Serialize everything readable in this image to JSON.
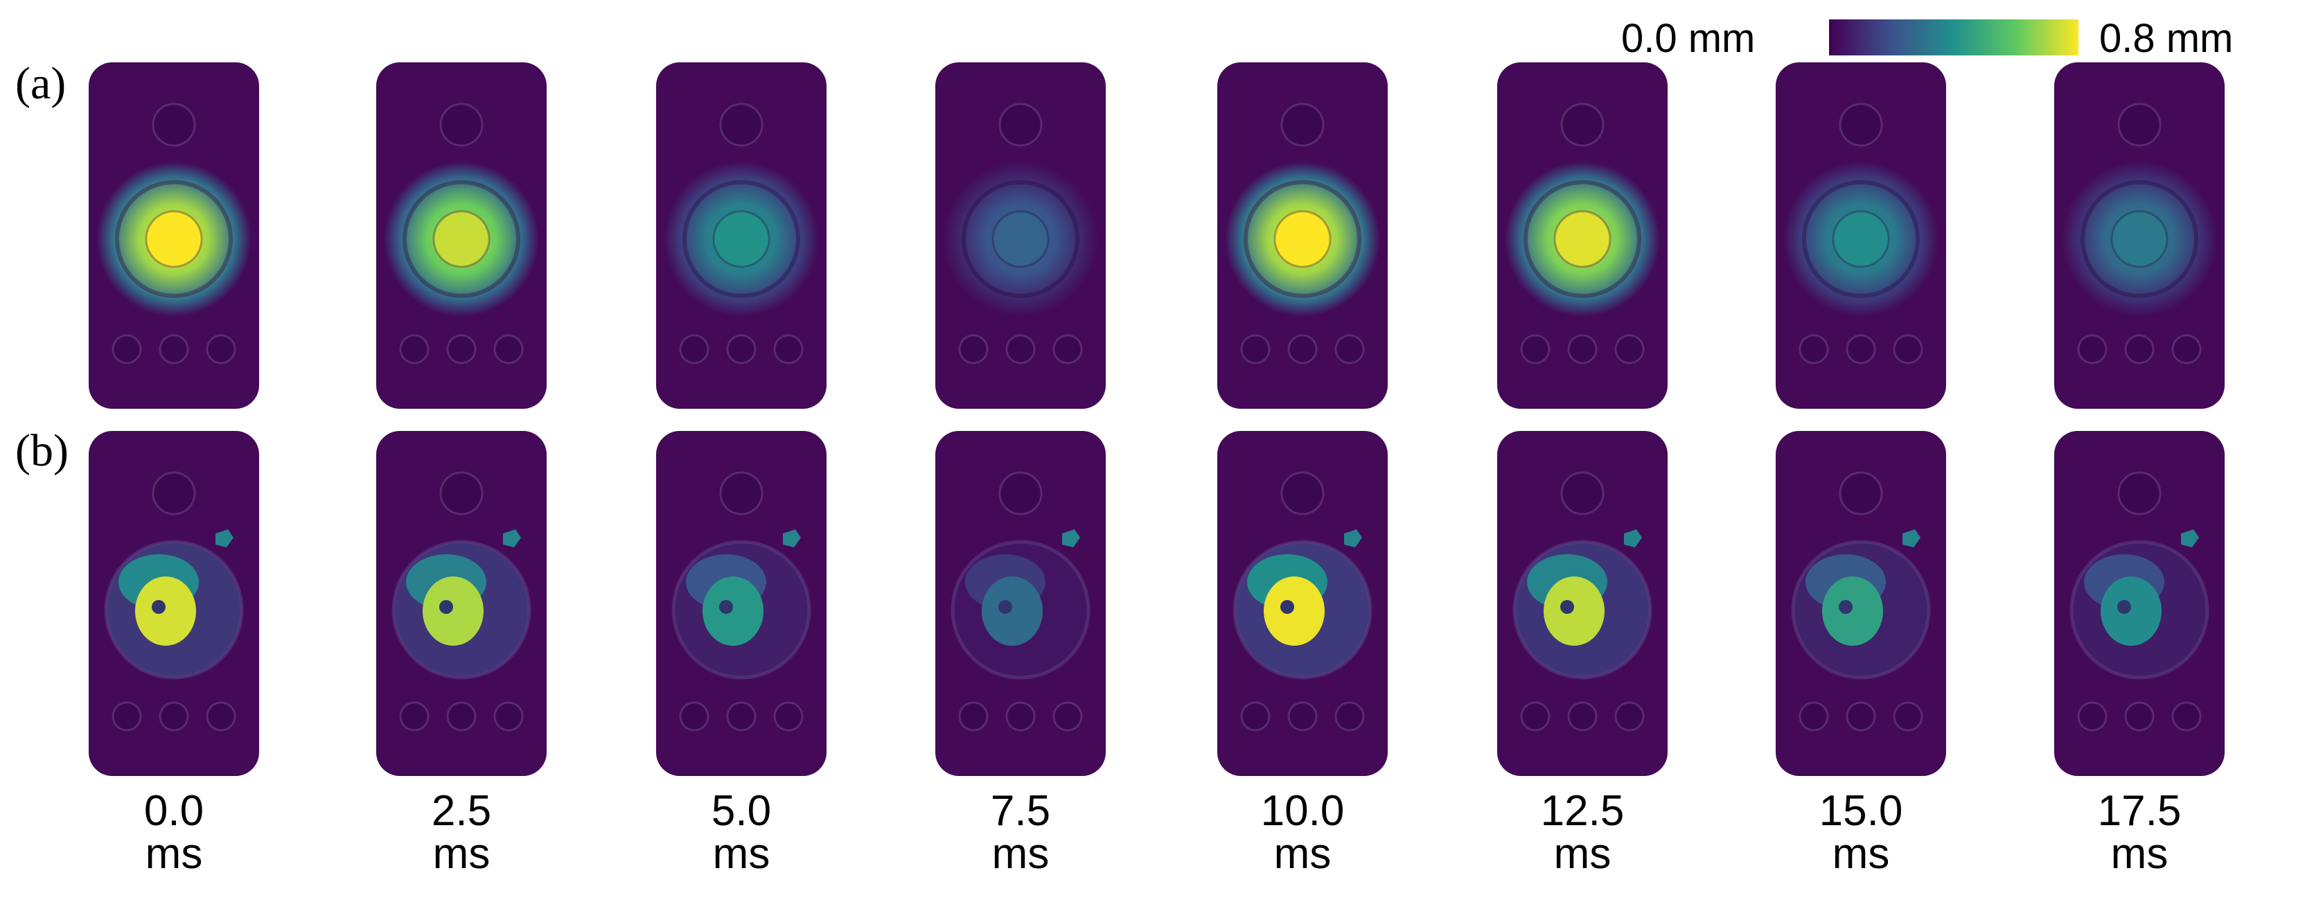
{
  "row_labels": [
    "(a)",
    "(b)"
  ],
  "colorbar": {
    "min_label": "0.0 mm",
    "max_label": "0.8 mm",
    "colormap": "viridis",
    "colors": [
      "#440154",
      "#3b528b",
      "#21918c",
      "#5ec962",
      "#fde725"
    ]
  },
  "time_unit": "ms",
  "frames": [
    {
      "time": "0.0",
      "row_a_peak": 0.8,
      "row_b_peak": 0.75
    },
    {
      "time": "2.5",
      "row_a_peak": 0.72,
      "row_b_peak": 0.7
    },
    {
      "time": "5.0",
      "row_a_peak": 0.4,
      "row_b_peak": 0.42
    },
    {
      "time": "7.5",
      "row_a_peak": 0.25,
      "row_b_peak": 0.28
    },
    {
      "time": "10.0",
      "row_a_peak": 0.8,
      "row_b_peak": 0.78
    },
    {
      "time": "12.5",
      "row_a_peak": 0.75,
      "row_b_peak": 0.72
    },
    {
      "time": "15.0",
      "row_a_peak": 0.38,
      "row_b_peak": 0.45
    },
    {
      "time": "17.5",
      "row_a_peak": 0.32,
      "row_b_peak": 0.38
    }
  ]
}
